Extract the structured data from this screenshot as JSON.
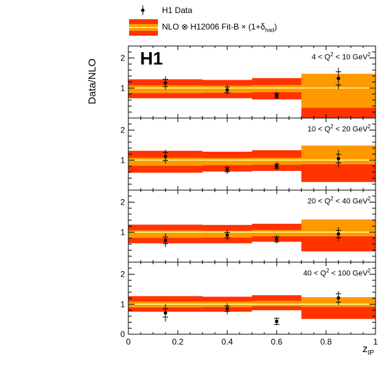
{
  "legend": {
    "data_label": "H1 Data",
    "nlo_label_main": "NLO ⊗ H12006 Fit-B × (1+δ",
    "nlo_label_sub": "had",
    "nlo_label_end": ")"
  },
  "logo": "H1",
  "axis": {
    "ylabel": "Data/NLO",
    "xlabel_main": "z",
    "xlabel_sub": "IP"
  },
  "colors": {
    "outer_band": "#ff3300",
    "inner_band": "#ff9900",
    "central_line": "#ffff99",
    "data_marker": "#000000"
  },
  "chart_data": {
    "type": "scatter",
    "x_bins": [
      [
        0.0,
        0.3
      ],
      [
        0.3,
        0.5
      ],
      [
        0.5,
        0.7
      ],
      [
        0.7,
        1.0
      ]
    ],
    "xlim": [
      0,
      1
    ],
    "ylim": [
      0,
      2.4
    ],
    "x_ticks": [
      "0",
      "0.2",
      "0.4",
      "0.6",
      "0.8",
      "1"
    ],
    "y_ticks": [
      "0",
      "1",
      "2"
    ],
    "panels": [
      {
        "label_pre": "4 < Q",
        "label_sup": "2",
        "label_post": " < 10 GeV",
        "label_unit_sup": "2",
        "data": [
          {
            "x": 0.15,
            "y": 1.17,
            "stat": 0.12,
            "tot": 0.22
          },
          {
            "x": 0.4,
            "y": 0.94,
            "stat": 0.09,
            "tot": 0.16
          },
          {
            "x": 0.6,
            "y": 0.75,
            "stat": 0.07,
            "tot": 0.13
          },
          {
            "x": 0.85,
            "y": 1.32,
            "stat": 0.22,
            "tot": 0.36
          }
        ],
        "nlo": [
          {
            "outer": [
              0.66,
              1.29
            ],
            "inner": [
              0.83,
              1.09
            ]
          },
          {
            "outer": [
              0.66,
              1.27
            ],
            "inner": [
              0.84,
              1.08
            ]
          },
          {
            "outer": [
              0.62,
              1.33
            ],
            "inner": [
              0.86,
              1.1
            ]
          },
          {
            "outer": [
              0.0,
              1.47
            ],
            "inner": [
              0.34,
              1.47
            ]
          }
        ]
      },
      {
        "label_pre": "10 < Q",
        "label_sup": "2",
        "label_post": " < 20 GeV",
        "label_unit_sup": "2",
        "data": [
          {
            "x": 0.15,
            "y": 1.12,
            "stat": 0.13,
            "tot": 0.23
          },
          {
            "x": 0.4,
            "y": 0.68,
            "stat": 0.07,
            "tot": 0.14
          },
          {
            "x": 0.6,
            "y": 0.8,
            "stat": 0.07,
            "tot": 0.13
          },
          {
            "x": 0.85,
            "y": 1.05,
            "stat": 0.14,
            "tot": 0.29
          }
        ],
        "nlo": [
          {
            "outer": [
              0.58,
              1.31
            ],
            "inner": [
              0.81,
              1.08
            ]
          },
          {
            "outer": [
              0.62,
              1.28
            ],
            "inner": [
              0.83,
              1.07
            ]
          },
          {
            "outer": [
              0.64,
              1.33
            ],
            "inner": [
              0.84,
              1.08
            ]
          },
          {
            "outer": [
              0.27,
              1.48
            ],
            "inner": [
              0.86,
              1.48
            ]
          }
        ]
      },
      {
        "label_pre": "20 < Q",
        "label_sup": "2",
        "label_post": " < 40 GeV",
        "label_unit_sup": "2",
        "data": [
          {
            "x": 0.15,
            "y": 0.73,
            "stat": 0.11,
            "tot": 0.23
          },
          {
            "x": 0.4,
            "y": 0.9,
            "stat": 0.09,
            "tot": 0.17
          },
          {
            "x": 0.6,
            "y": 0.76,
            "stat": 0.08,
            "tot": 0.14
          },
          {
            "x": 0.85,
            "y": 0.94,
            "stat": 0.12,
            "tot": 0.23
          }
        ],
        "nlo": [
          {
            "outer": [
              0.63,
              1.25
            ],
            "inner": [
              0.81,
              1.06
            ]
          },
          {
            "outer": [
              0.63,
              1.24
            ],
            "inner": [
              0.82,
              1.05
            ]
          },
          {
            "outer": [
              0.68,
              1.28
            ],
            "inner": [
              0.86,
              1.07
            ]
          },
          {
            "outer": [
              0.36,
              1.42
            ],
            "inner": [
              0.86,
              1.42
            ]
          }
        ]
      },
      {
        "label_pre": "40 < Q",
        "label_sup": "2",
        "label_post": " < 100 GeV",
        "label_unit_sup": "2",
        "data": [
          {
            "x": 0.15,
            "y": 0.71,
            "stat": 0.14,
            "tot": 0.29
          },
          {
            "x": 0.4,
            "y": 0.85,
            "stat": 0.09,
            "tot": 0.18
          },
          {
            "x": 0.6,
            "y": 0.43,
            "stat": 0.1,
            "tot": 0.13
          },
          {
            "x": 0.85,
            "y": 1.21,
            "stat": 0.14,
            "tot": 0.23
          }
        ],
        "nlo": [
          {
            "outer": [
              0.75,
              1.27
            ],
            "inner": [
              0.89,
              1.09
            ]
          },
          {
            "outer": [
              0.75,
              1.25
            ],
            "inner": [
              0.9,
              1.09
            ]
          },
          {
            "outer": [
              0.8,
              1.3
            ],
            "inner": [
              0.93,
              1.11
            ]
          },
          {
            "outer": [
              0.51,
              1.23
            ],
            "inner": [
              0.91,
              1.23
            ]
          }
        ]
      }
    ]
  }
}
